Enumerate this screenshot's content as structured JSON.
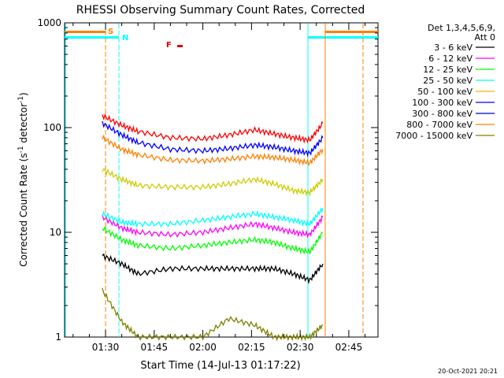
{
  "chart_data": {
    "type": "line",
    "title": "RHESSI Observing Summary Count Rates, Corrected",
    "xlabel": "Start Time (14-Jul-13 01:17:22)",
    "ylabel": "Corrected Count Rate (s",
    "ylabel_sup1": "-1",
    "ylabel_mid": " detector",
    "ylabel_sup2": "-1",
    "ylabel_end": ")",
    "yscale": "log",
    "ylim": [
      1,
      1000
    ],
    "xlim": [
      "01:17:22",
      "02:54"
    ],
    "ytick_labels": [
      "1",
      "10",
      "100",
      "1000"
    ],
    "ytick_values": [
      1,
      10,
      100,
      1000
    ],
    "xtick_labels": [
      "01:30",
      "01:45",
      "02:00",
      "02:15",
      "02:30",
      "02:45"
    ],
    "xtick_minutes": [
      90,
      105,
      120,
      135,
      150,
      165
    ],
    "legend": {
      "header1": "Det 1,3,4,5,6,9,",
      "header2": "Att 0",
      "placement": "right-outside"
    },
    "series": [
      {
        "name": "3 - 6 keV",
        "color": "#000000",
        "minutes": [
          89,
          95,
          100,
          110,
          120,
          128,
          136,
          142,
          148,
          153,
          157
        ],
        "values": [
          6,
          5,
          4,
          4.5,
          4.5,
          4.5,
          4.5,
          4.5,
          4,
          3.5,
          5
        ]
      },
      {
        "name": "6 - 12 keV",
        "color": "#ff00ff",
        "minutes": [
          89,
          95,
          100,
          110,
          120,
          128,
          136,
          142,
          148,
          153,
          157
        ],
        "values": [
          14,
          11,
          10,
          9.5,
          10,
          11,
          12,
          11,
          10,
          9.5,
          14
        ]
      },
      {
        "name": "12 - 25 keV",
        "color": "#00ff00",
        "minutes": [
          89,
          95,
          100,
          110,
          120,
          128,
          136,
          142,
          148,
          153,
          157
        ],
        "values": [
          11,
          8.5,
          7.5,
          7,
          7.5,
          8,
          8.5,
          8,
          7,
          6.5,
          10
        ]
      },
      {
        "name": "25 - 50 keV",
        "color": "#00ffff",
        "minutes": [
          89,
          95,
          100,
          110,
          120,
          128,
          136,
          142,
          148,
          153,
          157
        ],
        "values": [
          15,
          12.5,
          12,
          12,
          13,
          14,
          15,
          14,
          13,
          12,
          17
        ]
      },
      {
        "name": "50 - 100 keV",
        "color": "#ffb000",
        "minutes": [],
        "values": []
      },
      {
        "name": "100 - 300 keV",
        "color": "#0000ff",
        "minutes": [
          89,
          95,
          100,
          110,
          120,
          128,
          136,
          142,
          148,
          153,
          157
        ],
        "values": [
          110,
          85,
          72,
          62,
          60,
          63,
          68,
          65,
          60,
          57,
          80
        ]
      },
      {
        "name": "300 - 800 keV",
        "color": "#0000cd",
        "minutes": [],
        "values": []
      },
      {
        "name": "800 - 7000 keV",
        "color": "#ff8000",
        "minutes": [
          89,
          95,
          100,
          110,
          120,
          128,
          136,
          142,
          148,
          153,
          157
        ],
        "values": [
          80,
          62,
          55,
          49,
          48,
          50,
          53,
          52,
          49,
          46,
          62
        ]
      },
      {
        "name": "7000 - 15000 keV",
        "color": "#808000",
        "minutes": [
          89,
          95,
          100,
          110,
          120,
          128,
          136,
          142,
          148,
          153,
          157
        ],
        "values": [
          2.8,
          1.4,
          1,
          1,
          1,
          1.5,
          1.3,
          1,
          1,
          1,
          1.3
        ]
      }
    ],
    "extra_series": [
      {
        "color": "#ff0000",
        "minutes": [
          89,
          95,
          100,
          110,
          120,
          128,
          136,
          142,
          148,
          153,
          157
        ],
        "values": [
          130,
          105,
          92,
          80,
          78,
          85,
          95,
          87,
          80,
          76,
          110
        ]
      },
      {
        "color": "#cccc00",
        "minutes": [
          89,
          95,
          100,
          110,
          120,
          128,
          136,
          142,
          148,
          153,
          157
        ],
        "values": [
          40,
          32,
          28,
          27,
          27,
          29,
          32,
          29,
          25,
          24,
          32
        ]
      }
    ],
    "markers": [
      {
        "label": "S",
        "color": "#ff8000",
        "minute": 89
      },
      {
        "label": "N",
        "color": "#00ffff",
        "minute": 95
      },
      {
        "label": "F",
        "color": "#dd0000",
        "minute": 113
      }
    ],
    "timestamp": "20-Oct-2021 20:21"
  }
}
